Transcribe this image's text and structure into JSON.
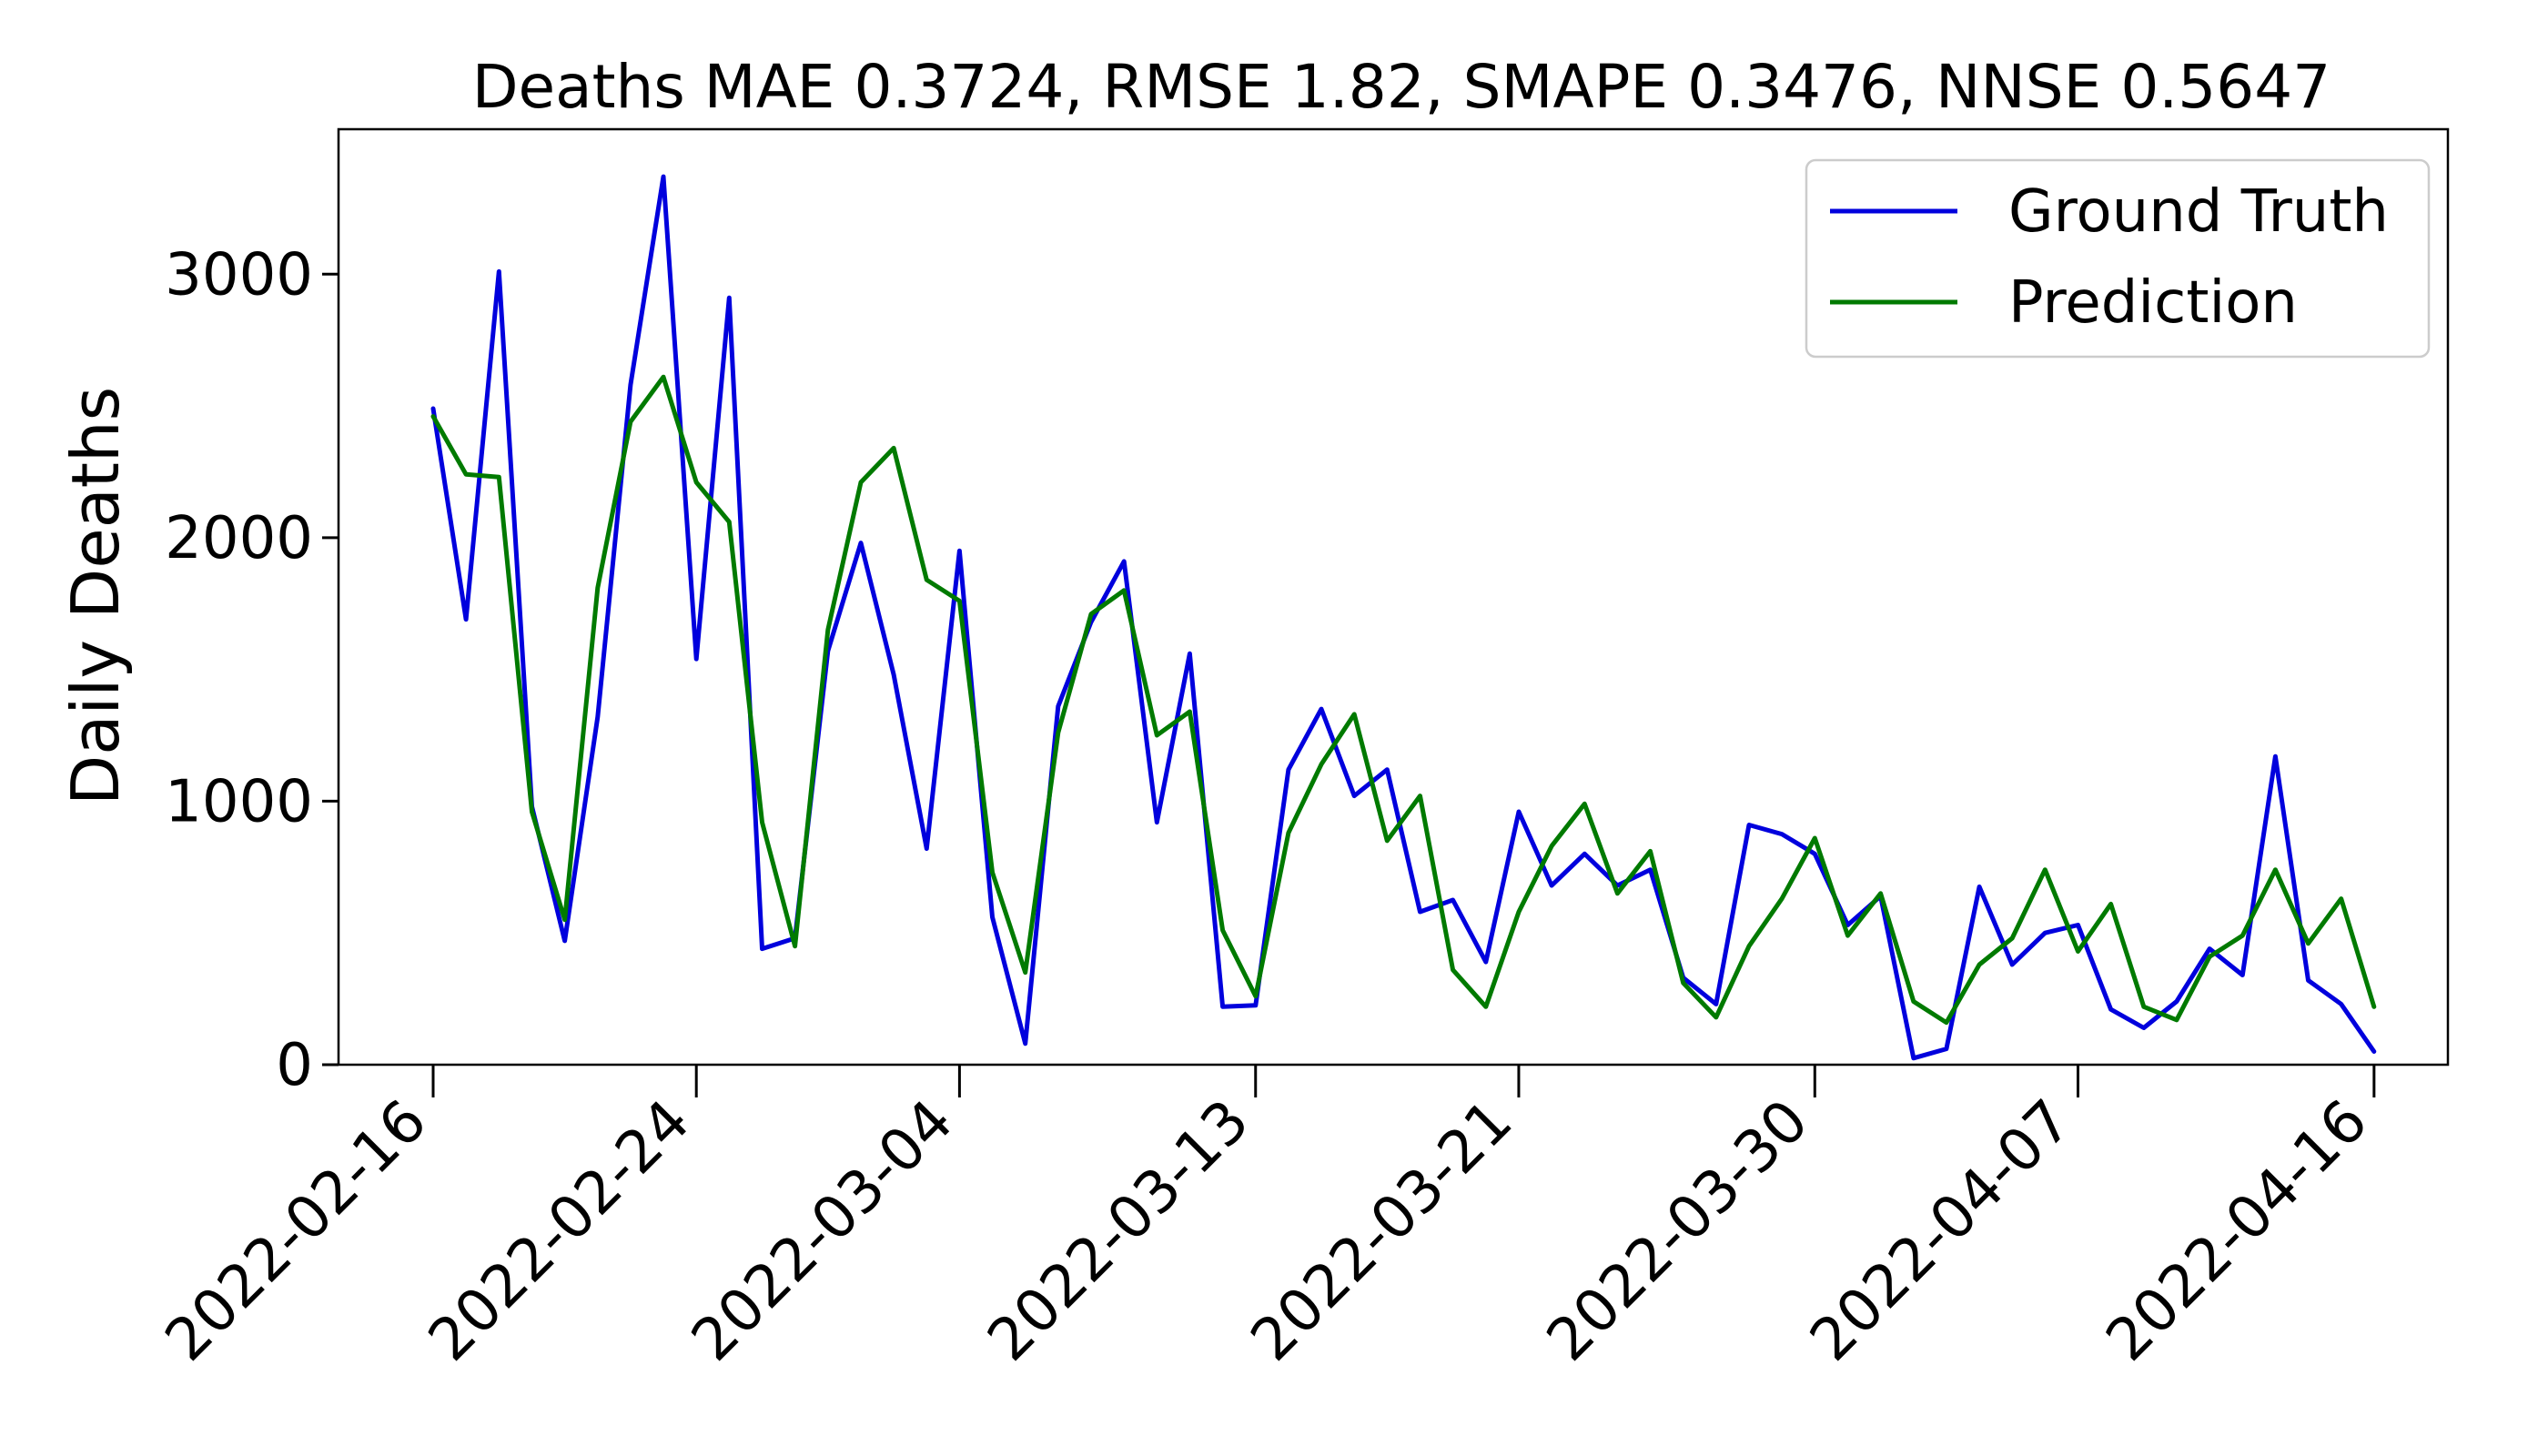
{
  "chart_data": {
    "type": "line",
    "title": "Deaths MAE 0.3724, RMSE 1.82, SMAPE 0.3476, NNSE 0.5647",
    "xlabel": "",
    "ylabel": "Daily Deaths",
    "x_tick_labels": [
      "2022-02-16",
      "2022-02-24",
      "2022-03-04",
      "2022-03-13",
      "2022-03-21",
      "2022-03-30",
      "2022-04-07",
      "2022-04-16"
    ],
    "y_ticks": [
      0,
      1000,
      2000,
      3000
    ],
    "ylim": [
      0,
      3550
    ],
    "x_start": "2022-02-16",
    "legend_position": "top-right",
    "grid": false,
    "series": [
      {
        "name": "Ground Truth",
        "color": "#0000dd",
        "values": [
          2490,
          1690,
          3010,
          980,
          470,
          1320,
          2580,
          3370,
          1540,
          2910,
          440,
          480,
          1570,
          1980,
          1480,
          820,
          1950,
          560,
          80,
          1360,
          1680,
          1910,
          920,
          1560,
          220,
          225,
          1120,
          1350,
          1020,
          1120,
          580,
          625,
          390,
          960,
          680,
          800,
          680,
          740,
          330,
          230,
          910,
          875,
          800,
          530,
          640,
          25,
          60,
          675,
          380,
          500,
          530,
          210,
          140,
          240,
          440,
          340,
          1170,
          320,
          230,
          50
        ]
      },
      {
        "name": "Prediction",
        "color": "#007a00",
        "values": [
          2460,
          2240,
          2230,
          960,
          550,
          1810,
          2440,
          2610,
          2210,
          2060,
          920,
          450,
          1650,
          2210,
          2340,
          1840,
          1760,
          730,
          350,
          1260,
          1710,
          1800,
          1250,
          1340,
          510,
          260,
          880,
          1140,
          1330,
          850,
          1020,
          360,
          220,
          580,
          830,
          990,
          650,
          810,
          310,
          180,
          450,
          630,
          860,
          490,
          650,
          240,
          160,
          380,
          480,
          740,
          430,
          610,
          220,
          170,
          410,
          490,
          740,
          460,
          630,
          220
        ]
      }
    ]
  }
}
